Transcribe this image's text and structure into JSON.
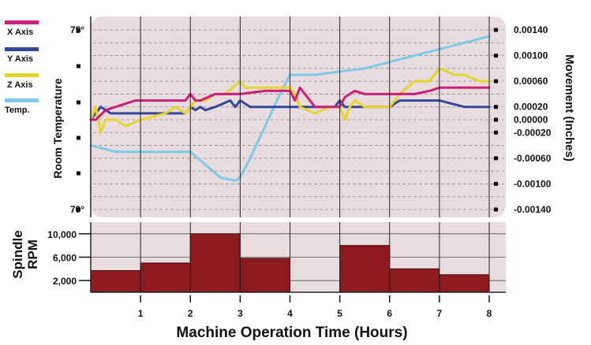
{
  "chart_data": [
    {
      "type": "line",
      "ylabel_left": "Room Temperature",
      "ylabel_right": "Movement (Inches)",
      "left_ticks": [
        "75°",
        "70°"
      ],
      "left_ylim": [
        70,
        75
      ],
      "right_ticks": [
        "0.00140",
        "0.00100",
        "0.00060",
        "0.00020",
        "0.00000",
        "-0.00020",
        "-0.00060",
        "-0.00100",
        "-0.00140"
      ],
      "right_tick_values": [
        0.0014,
        0.001,
        0.0006,
        0.0002,
        0.0,
        -0.0002,
        -0.0006,
        -0.001,
        -0.0014
      ],
      "right_ylim": [
        -0.0014,
        0.0014
      ],
      "xlim": [
        0,
        8
      ],
      "legend_position": "top-left",
      "grid": true,
      "series": [
        {
          "name": "X Axis",
          "color": "#cc1f7a",
          "x": [
            0,
            0.1,
            0.3,
            0.5,
            0.7,
            0.9,
            1.0,
            1.5,
            1.9,
            2.0,
            2.1,
            2.2,
            2.5,
            3.0,
            3.5,
            4.0,
            4.1,
            4.2,
            4.4,
            4.5,
            4.6,
            4.8,
            5.0,
            5.1,
            5.3,
            5.5,
            6.0,
            6.5,
            6.8,
            7.0,
            7.1,
            7.5,
            8.0
          ],
          "y": [
            0.0,
            0.0,
            0.00015,
            0.0002,
            0.00025,
            0.0003,
            0.0003,
            0.0003,
            0.0003,
            0.0004,
            0.0003,
            0.0003,
            0.0004,
            0.0004,
            0.00045,
            0.00045,
            0.0003,
            0.0005,
            0.0003,
            0.0002,
            0.0002,
            0.0002,
            0.0002,
            0.00035,
            0.00045,
            0.0004,
            0.0004,
            0.0004,
            0.00045,
            0.0005,
            0.0005,
            0.0005,
            0.0005
          ]
        },
        {
          "name": "Y Axis",
          "color": "#33479b",
          "x": [
            0,
            0.2,
            0.4,
            0.6,
            0.8,
            1.0,
            1.5,
            1.9,
            2.0,
            2.1,
            2.2,
            2.3,
            2.5,
            2.8,
            2.9,
            3.0,
            3.2,
            3.5,
            4.0,
            4.5,
            4.9,
            5.0,
            5.1,
            5.2,
            5.5,
            6.0,
            6.2,
            6.5,
            7.0,
            7.5,
            8.0
          ],
          "y": [
            0.0,
            0.0002,
            0.0001,
            0.0001,
            0.0001,
            0.0001,
            0.0001,
            0.0001,
            0.0002,
            0.00015,
            0.0002,
            0.00015,
            0.0002,
            0.0003,
            0.0002,
            0.0003,
            0.0002,
            0.0002,
            0.0002,
            0.0002,
            0.0002,
            0.0003,
            0.0002,
            0.0002,
            0.0002,
            0.0002,
            0.0003,
            0.0003,
            0.0003,
            0.0002,
            0.0002
          ]
        },
        {
          "name": "Z Axis",
          "color": "#e6d52a",
          "x": [
            0,
            0.1,
            0.2,
            0.3,
            0.5,
            0.7,
            1.0,
            1.5,
            1.7,
            1.9,
            2.0,
            2.1,
            2.3,
            2.5,
            2.7,
            3.0,
            3.1,
            3.3,
            3.5,
            3.8,
            4.0,
            4.1,
            4.2,
            4.5,
            4.8,
            5.0,
            5.1,
            5.2,
            5.3,
            5.5,
            6.0,
            6.2,
            6.5,
            6.8,
            7.0,
            7.3,
            7.5,
            7.8,
            8.0
          ],
          "y": [
            0.0,
            0.0002,
            -0.0002,
            0.0,
            0.0,
            -0.0001,
            0.0,
            0.0001,
            0.0002,
            0.0001,
            0.0002,
            0.0003,
            0.0003,
            0.0004,
            0.0004,
            0.0006,
            0.0005,
            0.0005,
            0.0005,
            0.0005,
            0.0005,
            0.0004,
            0.0002,
            0.0001,
            0.0002,
            0.0002,
            0.0,
            0.0002,
            0.0003,
            0.0002,
            0.0002,
            0.0004,
            0.0006,
            0.0006,
            0.0008,
            0.0007,
            0.0007,
            0.0006,
            0.0006
          ]
        },
        {
          "name": "Temp.",
          "color": "#7ec8e8",
          "x": [
            0,
            0.5,
            1.0,
            1.5,
            2.0,
            2.3,
            2.6,
            2.9,
            3.0,
            3.2,
            3.5,
            3.8,
            4.0,
            4.5,
            5.0,
            5.5,
            6.0,
            6.5,
            7.0,
            7.5,
            8.0
          ],
          "y": [
            -0.0004,
            -0.0005,
            -0.0005,
            -0.0005,
            -0.0005,
            -0.0007,
            -0.0009,
            -0.00095,
            -0.0009,
            -0.0006,
            -0.0001,
            0.0004,
            0.0007,
            0.0007,
            0.00075,
            0.0008,
            0.0009,
            0.001,
            0.0011,
            0.0012,
            0.0013
          ]
        }
      ]
    },
    {
      "type": "bar",
      "ylabel": "Spindle\nRPM",
      "xlabel": "Machine Operation Time (Hours)",
      "x_ticks": [
        "1",
        "2",
        "3",
        "4",
        "5",
        "6",
        "7",
        "8"
      ],
      "y_ticks": [
        "10,000",
        "6,000",
        "2,000"
      ],
      "y_tick_values": [
        10000,
        6000,
        2000
      ],
      "ylim": [
        0,
        12000
      ],
      "bar_color": "#8c1a1f",
      "bars": [
        {
          "x_start": 0,
          "x_end": 1,
          "value": 3700
        },
        {
          "x_start": 1,
          "x_end": 2,
          "value": 5000
        },
        {
          "x_start": 2,
          "x_end": 3,
          "value": 10000
        },
        {
          "x_start": 3,
          "x_end": 4,
          "value": 5800
        },
        {
          "x_start": 4,
          "x_end": 5,
          "value": 0
        },
        {
          "x_start": 5,
          "x_end": 6,
          "value": 8000
        },
        {
          "x_start": 6,
          "x_end": 7,
          "value": 4000
        },
        {
          "x_start": 7,
          "x_end": 8,
          "value": 3000
        }
      ]
    }
  ]
}
